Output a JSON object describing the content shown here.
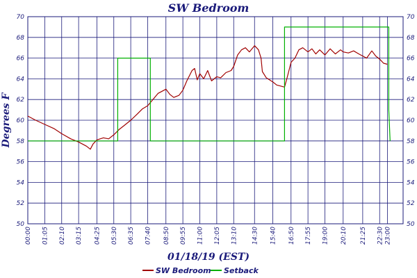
{
  "chart_data": {
    "type": "line",
    "title": "SW Bedroom",
    "xlabel": "01/18/19 (EST)",
    "ylabel": "Degrees F",
    "ylim": [
      50,
      70
    ],
    "yticks": [
      50,
      52,
      54,
      56,
      58,
      60,
      62,
      64,
      66,
      68,
      70
    ],
    "right_axis": true,
    "grid": true,
    "legend_position": "bottom-center",
    "xticks": [
      "00:00",
      "01:05",
      "02:10",
      "03:15",
      "04:25",
      "05:30",
      "06:35",
      "07:40",
      "08:50",
      "09:55",
      "11:00",
      "12:05",
      "13:10",
      "14:30",
      "15:40",
      "16:50",
      "17:55",
      "19:00",
      "20:10",
      "21:25",
      "22:30",
      "23:00"
    ],
    "series": [
      {
        "name": "SW Bedroom",
        "color": "#a00000",
        "points": [
          [
            "00:00",
            60.4
          ],
          [
            "00:30",
            60.0
          ],
          [
            "01:05",
            59.6
          ],
          [
            "01:40",
            59.2
          ],
          [
            "02:10",
            58.7
          ],
          [
            "02:45",
            58.2
          ],
          [
            "03:15",
            57.9
          ],
          [
            "03:45",
            57.5
          ],
          [
            "04:00",
            57.2
          ],
          [
            "04:10",
            57.7
          ],
          [
            "04:25",
            58.1
          ],
          [
            "04:50",
            58.3
          ],
          [
            "05:10",
            58.2
          ],
          [
            "05:30",
            58.6
          ],
          [
            "05:50",
            59.1
          ],
          [
            "06:10",
            59.5
          ],
          [
            "06:35",
            60.0
          ],
          [
            "07:00",
            60.6
          ],
          [
            "07:20",
            61.1
          ],
          [
            "07:40",
            61.4
          ],
          [
            "08:00",
            62.0
          ],
          [
            "08:20",
            62.6
          ],
          [
            "08:50",
            63.0
          ],
          [
            "09:05",
            62.5
          ],
          [
            "09:20",
            62.2
          ],
          [
            "09:40",
            62.4
          ],
          [
            "09:55",
            62.9
          ],
          [
            "10:10",
            63.8
          ],
          [
            "10:30",
            64.8
          ],
          [
            "10:40",
            65.0
          ],
          [
            "10:50",
            63.9
          ],
          [
            "11:00",
            64.5
          ],
          [
            "11:15",
            64.0
          ],
          [
            "11:30",
            64.8
          ],
          [
            "11:45",
            63.8
          ],
          [
            "12:05",
            64.2
          ],
          [
            "12:20",
            64.1
          ],
          [
            "12:40",
            64.6
          ],
          [
            "13:00",
            64.8
          ],
          [
            "13:10",
            65.2
          ],
          [
            "13:25",
            66.3
          ],
          [
            "13:40",
            66.8
          ],
          [
            "13:55",
            67.0
          ],
          [
            "14:10",
            66.6
          ],
          [
            "14:30",
            67.2
          ],
          [
            "14:45",
            66.8
          ],
          [
            "14:55",
            66.0
          ],
          [
            "15:00",
            64.7
          ],
          [
            "15:15",
            64.1
          ],
          [
            "15:40",
            63.7
          ],
          [
            "15:55",
            63.4
          ],
          [
            "16:10",
            63.3
          ],
          [
            "16:25",
            63.2
          ],
          [
            "16:35",
            64.1
          ],
          [
            "16:50",
            65.6
          ],
          [
            "17:05",
            66.0
          ],
          [
            "17:20",
            66.8
          ],
          [
            "17:35",
            67.0
          ],
          [
            "17:55",
            66.6
          ],
          [
            "18:10",
            66.9
          ],
          [
            "18:25",
            66.4
          ],
          [
            "18:40",
            66.8
          ],
          [
            "19:00",
            66.3
          ],
          [
            "19:20",
            66.9
          ],
          [
            "19:40",
            66.4
          ],
          [
            "20:00",
            66.8
          ],
          [
            "20:10",
            66.6
          ],
          [
            "20:30",
            66.5
          ],
          [
            "20:50",
            66.7
          ],
          [
            "21:10",
            66.4
          ],
          [
            "21:25",
            66.2
          ],
          [
            "21:40",
            66.0
          ],
          [
            "22:00",
            66.7
          ],
          [
            "22:15",
            66.2
          ],
          [
            "22:30",
            65.9
          ],
          [
            "22:45",
            65.5
          ],
          [
            "23:00",
            65.4
          ]
        ]
      },
      {
        "name": "Setback",
        "color": "#00b000",
        "points": [
          [
            "00:00",
            58
          ],
          [
            "05:45",
            58
          ],
          [
            "05:45",
            66
          ],
          [
            "07:50",
            66
          ],
          [
            "07:50",
            58
          ],
          [
            "16:25",
            58
          ],
          [
            "16:25",
            69
          ],
          [
            "23:05",
            69
          ],
          [
            "23:05",
            61
          ],
          [
            "23:10",
            58
          ]
        ]
      }
    ]
  }
}
